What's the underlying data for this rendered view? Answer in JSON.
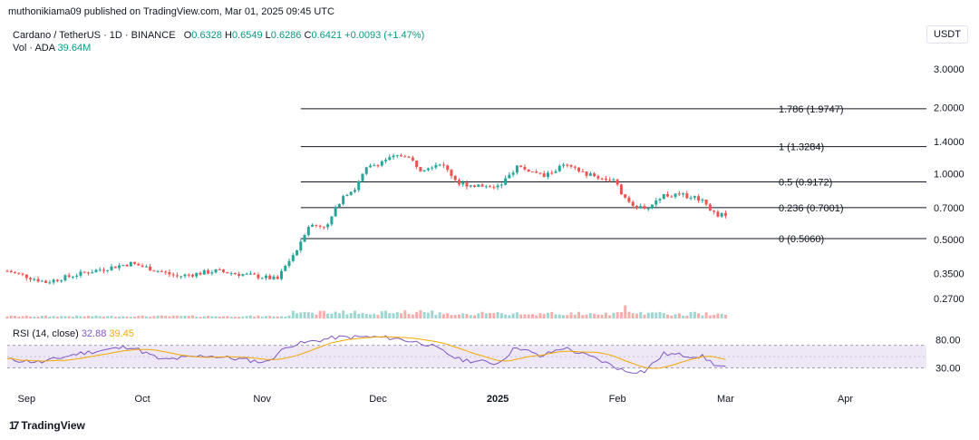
{
  "header": {
    "publisher": "muthonikiama09 published on TradingView.com, Mar 01, 2025 09:45 UTC"
  },
  "legend": {
    "symbol": "Cardano / TetherUS · 1D · BINANCE",
    "open_label": "O",
    "open": "0.6328",
    "high_label": "H",
    "high": "0.6549",
    "low_label": "L",
    "low": "0.6286",
    "close_label": "C",
    "close": "0.6421",
    "change": "+0.0093 (+1.47%)",
    "vol_label": "Vol · ADA",
    "vol_value": "39.64M"
  },
  "currency": "USDT",
  "rsi_legend": {
    "label": "RSI (14, close)",
    "rsi": "32.88",
    "ma": "39.45"
  },
  "brand": {
    "name": "TradingView",
    "mark": "17"
  },
  "colors": {
    "up": "#26a69a",
    "down": "#ef5350",
    "vol_up": "#9ed7d1",
    "vol_down": "#f5aeac",
    "rsi": "#7e57c2",
    "rsi_ma": "#f2a900",
    "rsi_band": "#ede7f6"
  },
  "chart_data": [
    {
      "type": "candlestick",
      "scale": "log",
      "y_ticks": [
        "3.0000",
        "2.0000",
        "1.4000",
        "1.0000",
        "0.7000",
        "0.5000",
        "0.3500",
        "0.2700"
      ],
      "y_tick_values": [
        3.0,
        2.0,
        1.4,
        1.0,
        0.7,
        0.5,
        0.35,
        0.27
      ],
      "ylim": [
        0.25,
        3.3
      ],
      "x_ticks": [
        "Sep",
        "Oct",
        "Nov",
        "Dec",
        "2025",
        "Feb",
        "Mar",
        "Apr"
      ],
      "x_tick_dates": [
        "2024-09-01",
        "2024-10-01",
        "2024-11-01",
        "2024-12-01",
        "2025-01-01",
        "2025-02-01",
        "2025-03-01",
        "2025-04-01"
      ],
      "xlim": [
        "2024-08-27",
        "2025-04-22"
      ],
      "fib_levels": [
        {
          "label": "1.786 (1.9747)",
          "value": 1.9747
        },
        {
          "label": "1 (1.3284)",
          "value": 1.3284
        },
        {
          "label": "0.5 (0.9172)",
          "value": 0.9172
        },
        {
          "label": "0.236 (0.7001)",
          "value": 0.7001
        },
        {
          "label": "0 (0.5060)",
          "value": 0.506
        }
      ],
      "fib_start_date": "2024-11-11",
      "anchors": [
        [
          "2024-08-27",
          0.36
        ],
        [
          "2024-09-06",
          0.32
        ],
        [
          "2024-09-15",
          0.35
        ],
        [
          "2024-09-28",
          0.39
        ],
        [
          "2024-10-10",
          0.34
        ],
        [
          "2024-10-20",
          0.36
        ],
        [
          "2024-10-31",
          0.34
        ],
        [
          "2024-11-05",
          0.33
        ],
        [
          "2024-11-10",
          0.45
        ],
        [
          "2024-11-13",
          0.58
        ],
        [
          "2024-11-18",
          0.58
        ],
        [
          "2024-11-22",
          0.8
        ],
        [
          "2024-11-25",
          0.85
        ],
        [
          "2024-11-28",
          1.05
        ],
        [
          "2024-12-03",
          1.16
        ],
        [
          "2024-12-08",
          1.22
        ],
        [
          "2024-12-12",
          1.05
        ],
        [
          "2024-12-17",
          1.12
        ],
        [
          "2024-12-22",
          0.9
        ],
        [
          "2024-12-28",
          0.88
        ],
        [
          "2025-01-02",
          0.88
        ],
        [
          "2025-01-06",
          1.08
        ],
        [
          "2025-01-13",
          0.97
        ],
        [
          "2025-01-18",
          1.09
        ],
        [
          "2025-01-25",
          0.98
        ],
        [
          "2025-01-31",
          0.93
        ],
        [
          "2025-02-03",
          0.76
        ],
        [
          "2025-02-08",
          0.68
        ],
        [
          "2025-02-13",
          0.8
        ],
        [
          "2025-02-20",
          0.79
        ],
        [
          "2025-02-23",
          0.76
        ],
        [
          "2025-02-26",
          0.66
        ],
        [
          "2025-03-01",
          0.64
        ]
      ],
      "volume_spikes": [
        [
          "2024-11-12",
          3.0
        ],
        [
          "2024-11-21",
          2.4
        ],
        [
          "2024-12-03",
          3.5
        ],
        [
          "2025-02-03",
          6.0
        ]
      ]
    },
    {
      "type": "line",
      "title": "RSI (14, close)",
      "y_ticks": [
        "80.00",
        "30.00"
      ],
      "y_tick_values": [
        80,
        30
      ],
      "band": [
        30,
        70
      ],
      "ylim": [
        18,
        92
      ],
      "anchors": [
        [
          "2024-08-27",
          45
        ],
        [
          "2024-09-05",
          40
        ],
        [
          "2024-09-14",
          55
        ],
        [
          "2024-09-28",
          68
        ],
        [
          "2024-10-06",
          44
        ],
        [
          "2024-10-18",
          52
        ],
        [
          "2024-11-02",
          40
        ],
        [
          "2024-11-08",
          70
        ],
        [
          "2024-11-20",
          84
        ],
        [
          "2024-11-28",
          85
        ],
        [
          "2024-12-05",
          83
        ],
        [
          "2024-12-14",
          72
        ],
        [
          "2024-12-22",
          45
        ],
        [
          "2025-01-01",
          38
        ],
        [
          "2025-01-06",
          68
        ],
        [
          "2025-01-12",
          50
        ],
        [
          "2025-01-18",
          66
        ],
        [
          "2025-01-27",
          45
        ],
        [
          "2025-02-03",
          24
        ],
        [
          "2025-02-08",
          24
        ],
        [
          "2025-02-13",
          55
        ],
        [
          "2025-02-19",
          52
        ],
        [
          "2025-02-23",
          50
        ],
        [
          "2025-02-27",
          33
        ],
        [
          "2025-03-01",
          33
        ]
      ],
      "ma_period": 14
    }
  ]
}
